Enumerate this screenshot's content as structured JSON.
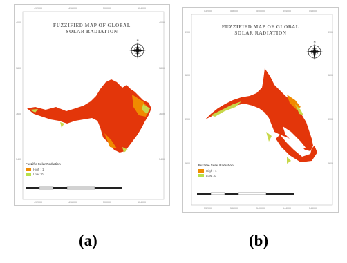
{
  "panels": [
    {
      "id": "a",
      "title_line1": "FUZZIFIED MAP OF GLOBAL",
      "title_line2": "SOLAR RADIATION",
      "legend_title": "Fuzzifie Solar Radiation",
      "legend_items": [
        {
          "label": "High : 1",
          "color": "#f08a00"
        },
        {
          "label": "Low : 0",
          "color": "#b8e04a"
        }
      ],
      "top_ticks": [
        "492000",
        "496000",
        "500000",
        "504000"
      ],
      "bottom_ticks": [
        "492000",
        "496000",
        "500000",
        "504000"
      ],
      "left_ticks": [
        "4000",
        "3800",
        "3600",
        "3400"
      ],
      "right_ticks": [
        "4000",
        "3800",
        "3600",
        "3400"
      ],
      "caption": "(a)"
    },
    {
      "id": "b",
      "title_line1": "FUZZIFIED MAP OF GLOBAL",
      "title_line2": "SOLAR RADIATION",
      "legend_title": "Fuzzifie Solar Radiation",
      "legend_items": [
        {
          "label": "High : 1",
          "color": "#f08a00"
        },
        {
          "label": "Low : 0",
          "color": "#b8e04a"
        }
      ],
      "top_ticks": [
        "532000",
        "536000",
        "540000",
        "544000",
        "548000"
      ],
      "bottom_ticks": [
        "532000",
        "536000",
        "540000",
        "544000",
        "548000"
      ],
      "left_ticks": [
        "3900",
        "3800",
        "3700",
        "3600"
      ],
      "right_ticks": [
        "3900",
        "3800",
        "3700",
        "3600"
      ],
      "caption": "(b)"
    }
  ],
  "colors": {
    "high": "#e8400c",
    "mid": "#f08a00",
    "low": "#b8e04a",
    "border": "#c9c9c9"
  }
}
